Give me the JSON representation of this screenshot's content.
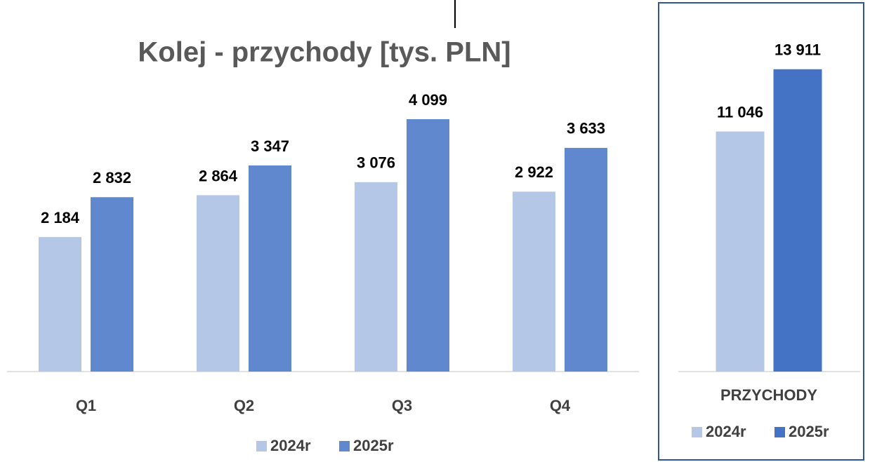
{
  "chart_data": [
    {
      "type": "bar",
      "title": "Kolej - przychody [tys. PLN]",
      "categories": [
        "Q1",
        "Q2",
        "Q3",
        "Q4"
      ],
      "series": [
        {
          "name": "2024r",
          "color": "#b4c7e7",
          "values": [
            2184,
            2864,
            3076,
            2922
          ],
          "value_labels": [
            "2 184",
            "2 864",
            "3 076",
            "2 922"
          ]
        },
        {
          "name": "2025r",
          "color": "#6088cf",
          "values": [
            2832,
            3347,
            4099,
            3633
          ],
          "value_labels": [
            "2 832",
            "3 347",
            "4 099",
            "3 633"
          ]
        }
      ],
      "ylim": [
        0,
        6000
      ],
      "legend": "bottom"
    },
    {
      "type": "bar",
      "categories": [
        "PRZYCHODY"
      ],
      "series": [
        {
          "name": "2024r",
          "color": "#b4c7e7",
          "values": [
            11046
          ],
          "value_labels": [
            "11 046"
          ]
        },
        {
          "name": "2025r",
          "color": "#4472c4",
          "values": [
            13911
          ],
          "value_labels": [
            "13 911"
          ]
        }
      ],
      "ylim": [
        0,
        17000
      ],
      "legend": "bottom"
    }
  ]
}
